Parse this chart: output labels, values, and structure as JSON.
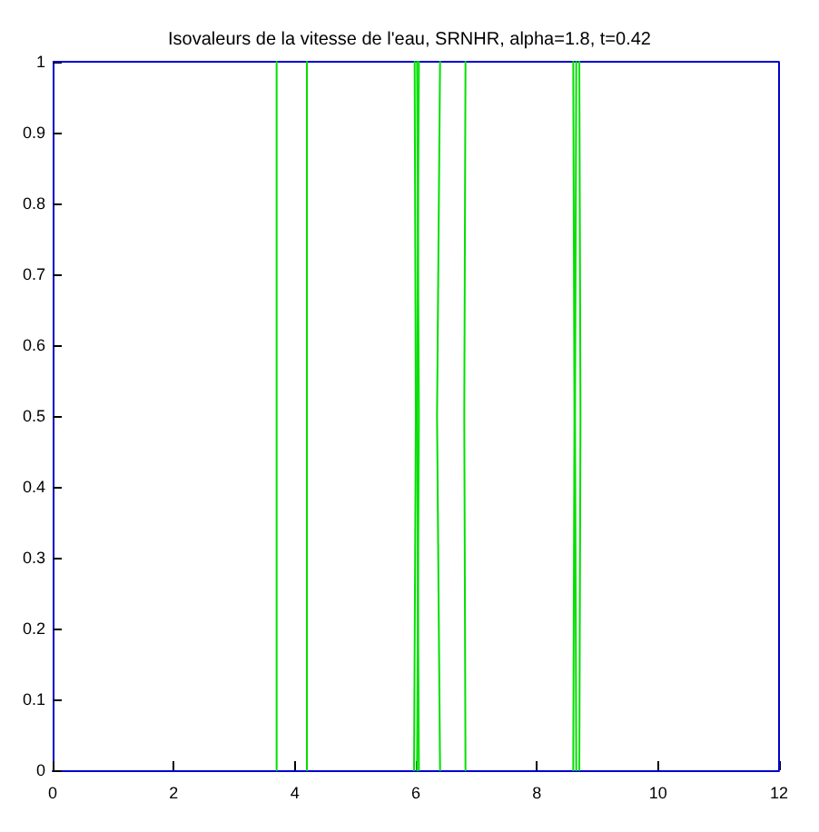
{
  "chart_data": {
    "type": "line",
    "title": "Isovaleurs de la vitesse de l'eau, SRNHR, alpha=1.8, t=0.42",
    "xlim": [
      0,
      12
    ],
    "xticks": [
      0,
      2,
      4,
      6,
      8,
      10,
      12
    ],
    "ylim": [
      0,
      1
    ],
    "yticks": [
      0,
      0.1,
      0.2,
      0.3,
      0.4,
      0.5,
      0.6,
      0.7,
      0.8,
      0.9,
      1
    ],
    "grid": false,
    "marker": "none",
    "line_style": "solid",
    "series": [
      {
        "color": "#00e000",
        "x": [
          3.7,
          3.7
        ],
        "values": [
          0,
          1
        ]
      },
      {
        "color": "#00e000",
        "x": [
          4.2,
          4.2
        ],
        "values": [
          0,
          1
        ]
      },
      {
        "color": "#00e000",
        "x": [
          5.97,
          6.0,
          5.98
        ],
        "values": [
          0,
          0.5,
          1
        ]
      },
      {
        "color": "#00e000",
        "x": [
          6.02,
          6.05,
          6.02
        ],
        "values": [
          0,
          0.5,
          1
        ]
      },
      {
        "color": "#00e000",
        "x": [
          6.05,
          6.02,
          6.05
        ],
        "values": [
          0,
          0.5,
          1
        ]
      },
      {
        "color": "#00e000",
        "x": [
          6.4,
          6.35,
          6.4
        ],
        "values": [
          0,
          0.5,
          1
        ]
      },
      {
        "color": "#00e000",
        "x": [
          6.82,
          6.8,
          6.82
        ],
        "values": [
          0,
          0.5,
          1
        ]
      },
      {
        "color": "#00e000",
        "x": [
          8.6,
          8.62,
          8.6
        ],
        "values": [
          0,
          0.5,
          1
        ]
      },
      {
        "color": "#00e000",
        "x": [
          8.65,
          8.63,
          8.65
        ],
        "values": [
          0,
          0.5,
          1
        ]
      },
      {
        "color": "#00e000",
        "x": [
          8.7,
          8.72,
          8.7
        ],
        "values": [
          0,
          0.5,
          1
        ]
      }
    ]
  }
}
